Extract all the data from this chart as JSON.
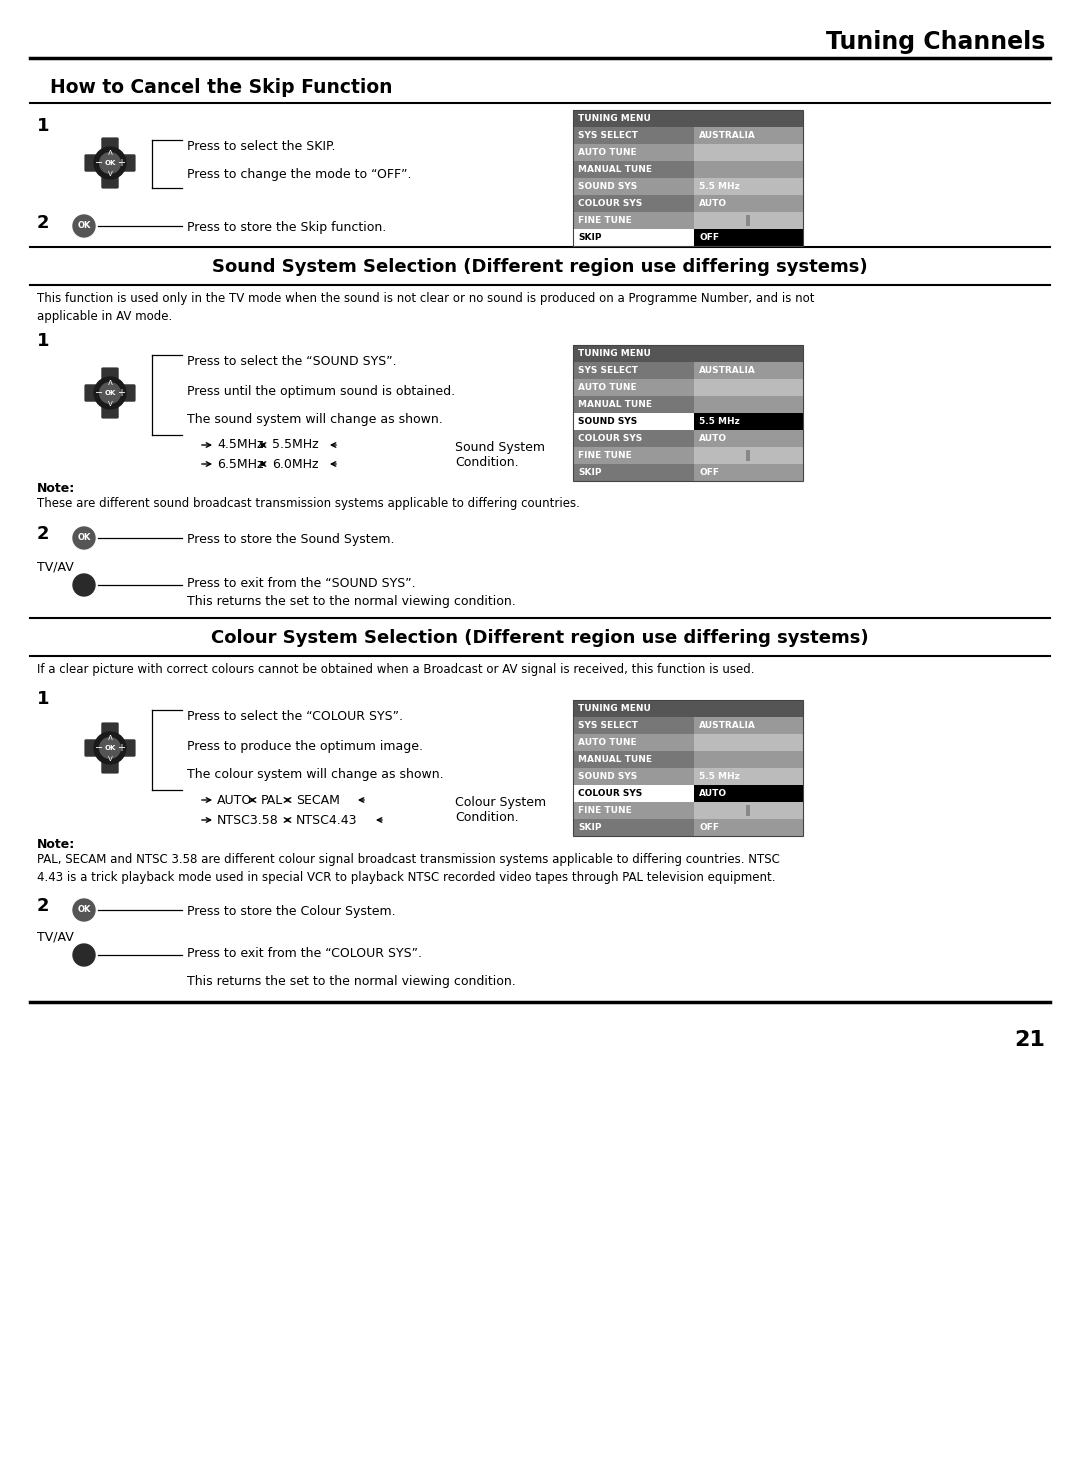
{
  "page_number": "21",
  "top_title": "Tuning Channels",
  "section1_title": "How to Cancel the Skip Function",
  "section2_title": "Sound System Selection (Different region use differing systems)",
  "section3_title": "Colour System Selection (Different region use differing systems)",
  "section2_body": "This function is used only in the TV mode when the sound is not clear or no sound is produced on a Programme Number, and is not\napplicable in AV mode.",
  "section3_body": "If a clear picture with correct colours cannot be obtained when a Broadcast or AV signal is received, this function is used.",
  "note1_body": "These are different sound broadcast transmission systems applicable to differing countries.",
  "note2_body": "PAL, SECAM and NTSC 3.58 are different colour signal broadcast transmission systems applicable to differing countries. NTSC\n4.43 is a trick playback mode used in special VCR to playback NTSC recorded video tapes through PAL television equipment.",
  "bg_color": "#ffffff",
  "menu_header_color": "#555555",
  "menu_dark_left": "#777777",
  "menu_light_left": "#999999",
  "menu_dark_right": "#999999",
  "menu_light_right": "#bbbbbb",
  "menu_highlight_left": "#ffffff",
  "menu_highlight_right": "#000000",
  "menu_text_white": "#ffffff",
  "menu_text_black": "#000000"
}
